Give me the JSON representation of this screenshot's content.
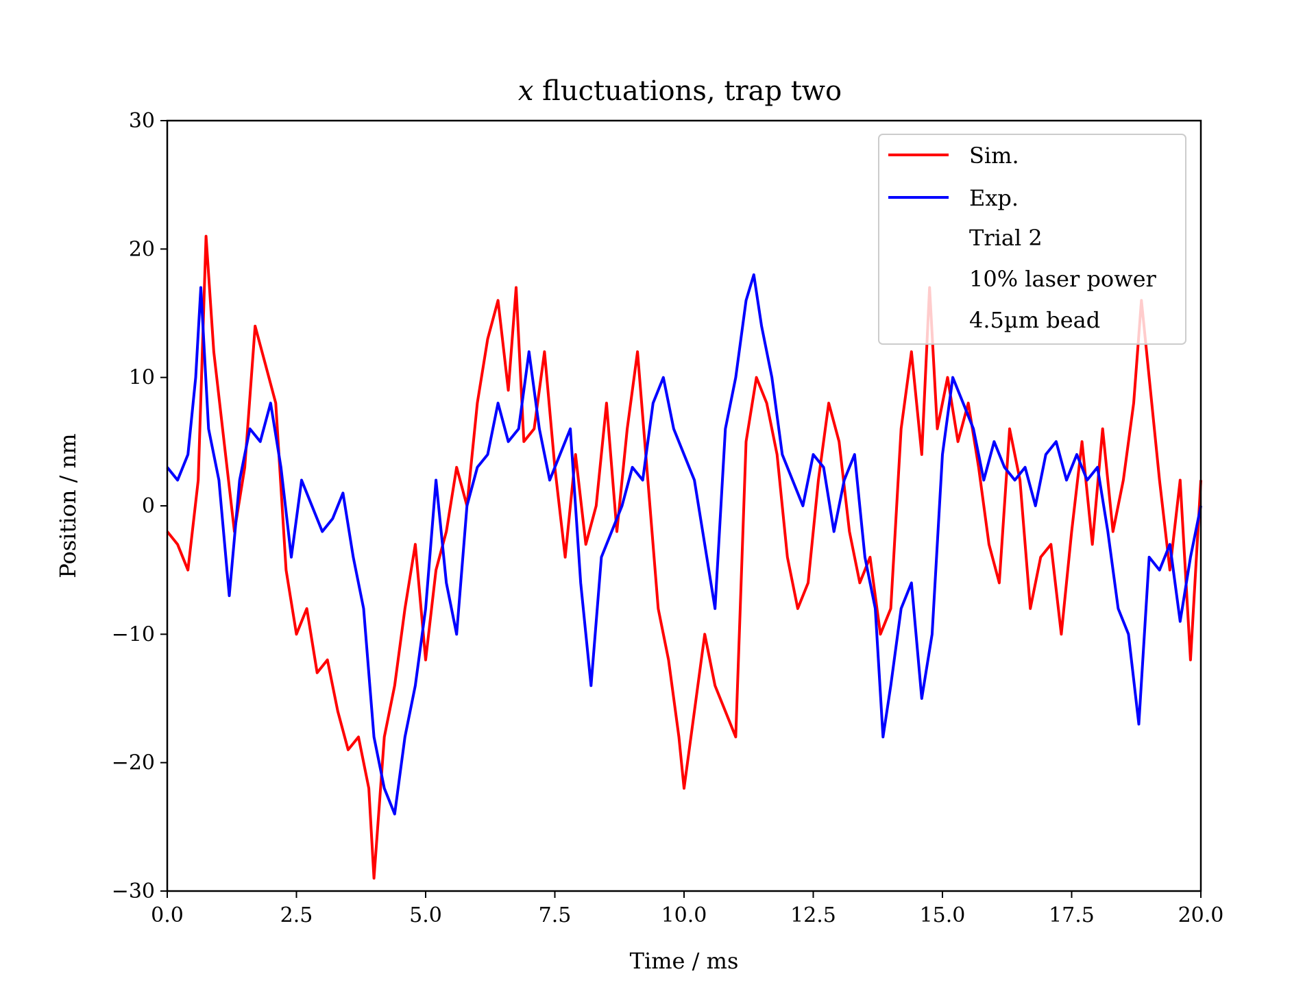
{
  "chart_data": {
    "type": "line",
    "title_var": "x",
    "title_rest": " fluctuations, trap two",
    "xlabel": "Time / ms",
    "ylabel": "Position / nm",
    "xlim": [
      0,
      20
    ],
    "ylim": [
      -30,
      30
    ],
    "xticks": [
      "0.0",
      "2.5",
      "5.0",
      "7.5",
      "10.0",
      "12.5",
      "15.0",
      "17.5",
      "20.0"
    ],
    "yticks": [
      "30",
      "20",
      "10",
      "0",
      "−10",
      "−20",
      "−30"
    ],
    "grid": false,
    "legend_position": "top-right",
    "legend_extra": [
      "Trial 2",
      "10% laser power",
      "4.5µm bead"
    ],
    "series": [
      {
        "name": "Sim.",
        "color": "#ff0000",
        "x": [
          0.0,
          0.2,
          0.4,
          0.6,
          0.75,
          0.9,
          1.1,
          1.3,
          1.5,
          1.7,
          1.9,
          2.1,
          2.3,
          2.5,
          2.7,
          2.9,
          3.1,
          3.3,
          3.5,
          3.7,
          3.9,
          4.0,
          4.2,
          4.4,
          4.6,
          4.8,
          5.0,
          5.2,
          5.4,
          5.6,
          5.8,
          6.0,
          6.2,
          6.4,
          6.6,
          6.75,
          6.9,
          7.1,
          7.3,
          7.5,
          7.7,
          7.9,
          8.1,
          8.3,
          8.5,
          8.7,
          8.9,
          9.1,
          9.3,
          9.5,
          9.7,
          9.9,
          10.0,
          10.2,
          10.4,
          10.6,
          10.8,
          11.0,
          11.2,
          11.4,
          11.6,
          11.8,
          12.0,
          12.2,
          12.4,
          12.6,
          12.8,
          13.0,
          13.2,
          13.4,
          13.6,
          13.8,
          14.0,
          14.2,
          14.4,
          14.6,
          14.75,
          14.9,
          15.1,
          15.3,
          15.5,
          15.7,
          15.9,
          16.1,
          16.3,
          16.5,
          16.7,
          16.9,
          17.1,
          17.3,
          17.5,
          17.7,
          17.9,
          18.1,
          18.3,
          18.5,
          18.7,
          18.85,
          19.0,
          19.2,
          19.4,
          19.6,
          19.8,
          20.0
        ],
        "y": [
          -2,
          -3,
          -5,
          2,
          21,
          12,
          5,
          -2,
          3,
          14,
          11,
          8,
          -5,
          -10,
          -8,
          -13,
          -12,
          -16,
          -19,
          -18,
          -22,
          -29,
          -18,
          -14,
          -8,
          -3,
          -12,
          -5,
          -2,
          3,
          0,
          8,
          13,
          16,
          9,
          17,
          5,
          6,
          12,
          3,
          -4,
          4,
          -3,
          0,
          8,
          -2,
          6,
          12,
          2,
          -8,
          -12,
          -18,
          -22,
          -16,
          -10,
          -14,
          -16,
          -18,
          5,
          10,
          8,
          4,
          -4,
          -8,
          -6,
          2,
          8,
          5,
          -2,
          -6,
          -4,
          -10,
          -8,
          6,
          12,
          4,
          17,
          6,
          10,
          5,
          8,
          3,
          -3,
          -6,
          6,
          2,
          -8,
          -4,
          -3,
          -10,
          -2,
          5,
          -3,
          6,
          -2,
          2,
          8,
          16,
          10,
          2,
          -5,
          2,
          -12,
          2
        ]
      },
      {
        "name": "Exp.",
        "color": "#0000ff",
        "x": [
          0.0,
          0.2,
          0.4,
          0.55,
          0.65,
          0.8,
          1.0,
          1.2,
          1.4,
          1.6,
          1.8,
          2.0,
          2.2,
          2.4,
          2.6,
          2.8,
          3.0,
          3.2,
          3.4,
          3.6,
          3.8,
          4.0,
          4.2,
          4.4,
          4.6,
          4.8,
          5.0,
          5.2,
          5.4,
          5.6,
          5.8,
          6.0,
          6.2,
          6.4,
          6.6,
          6.8,
          7.0,
          7.2,
          7.4,
          7.6,
          7.8,
          8.0,
          8.2,
          8.4,
          8.6,
          8.8,
          9.0,
          9.2,
          9.4,
          9.6,
          9.8,
          10.0,
          10.2,
          10.4,
          10.6,
          10.8,
          11.0,
          11.2,
          11.35,
          11.5,
          11.7,
          11.9,
          12.1,
          12.3,
          12.5,
          12.7,
          12.9,
          13.1,
          13.3,
          13.5,
          13.7,
          13.85,
          14.0,
          14.2,
          14.4,
          14.6,
          14.8,
          15.0,
          15.2,
          15.4,
          15.6,
          15.8,
          16.0,
          16.2,
          16.4,
          16.6,
          16.8,
          17.0,
          17.2,
          17.4,
          17.6,
          17.8,
          18.0,
          18.2,
          18.4,
          18.6,
          18.8,
          19.0,
          19.2,
          19.4,
          19.6,
          19.8,
          20.0
        ],
        "y": [
          3,
          2,
          4,
          10,
          17,
          6,
          2,
          -7,
          2,
          6,
          5,
          8,
          3,
          -4,
          2,
          0,
          -2,
          -1,
          1,
          -4,
          -8,
          -18,
          -22,
          -24,
          -18,
          -14,
          -8,
          2,
          -6,
          -10,
          0,
          3,
          4,
          8,
          5,
          6,
          12,
          6,
          2,
          4,
          6,
          -6,
          -14,
          -4,
          -2,
          0,
          3,
          2,
          8,
          10,
          6,
          4,
          2,
          -3,
          -8,
          6,
          10,
          16,
          18,
          14,
          10,
          4,
          2,
          0,
          4,
          3,
          -2,
          2,
          4,
          -4,
          -8,
          -18,
          -14,
          -8,
          -6,
          -15,
          -10,
          4,
          10,
          8,
          6,
          2,
          5,
          3,
          2,
          3,
          0,
          4,
          5,
          2,
          4,
          2,
          3,
          -2,
          -8,
          -10,
          -17,
          -4,
          -5,
          -3,
          -9,
          -4,
          0
        ]
      }
    ]
  }
}
